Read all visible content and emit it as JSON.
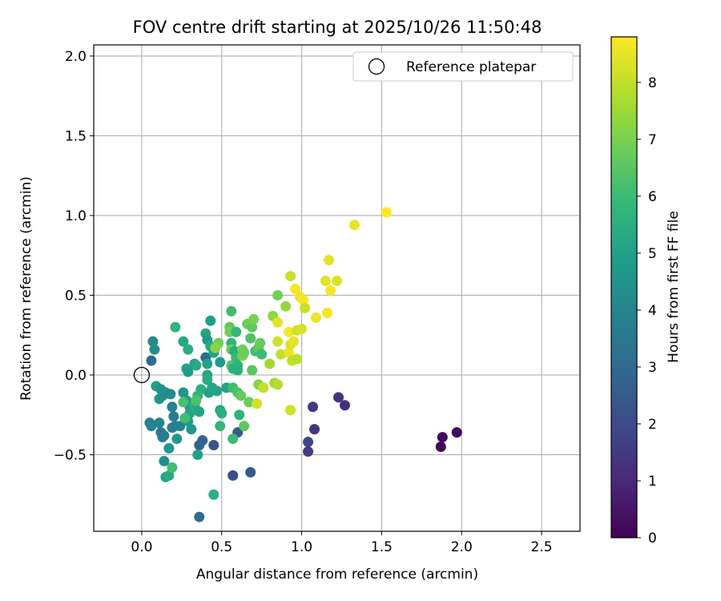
{
  "chart_data": {
    "type": "scatter",
    "title": "FOV centre drift starting at 2025/10/26 11:50:48",
    "xlabel": "Angular distance from reference (arcmin)",
    "ylabel": "Rotation from reference (arcmin)",
    "xlim": [
      -0.3,
      2.74
    ],
    "ylim": [
      -0.98,
      2.07
    ],
    "xticks": [
      0.0,
      0.5,
      1.0,
      1.5,
      2.0,
      2.5
    ],
    "xtick_labels": [
      "0.0",
      "0.5",
      "1.0",
      "1.5",
      "2.0",
      "2.5"
    ],
    "yticks": [
      -0.5,
      0.0,
      0.5,
      1.0,
      1.5,
      2.0
    ],
    "ytick_labels": [
      "−0.5",
      "0.0",
      "0.5",
      "1.0",
      "1.5",
      "2.0"
    ],
    "grid": true,
    "legend": {
      "position": "top-right",
      "label": "Reference platepar"
    },
    "reference_point": {
      "x": 0.0,
      "y": 0.0
    },
    "colorbar": {
      "label": "Hours from first FF file",
      "min": 0,
      "max": 8.8,
      "ticks": [
        0,
        1,
        2,
        3,
        4,
        5,
        6,
        7,
        8
      ],
      "tick_labels": [
        "0",
        "1",
        "2",
        "3",
        "4",
        "5",
        "6",
        "7",
        "8"
      ],
      "colormap": [
        "#440154",
        "#482878",
        "#3e4989",
        "#31688e",
        "#26828e",
        "#1f9e89",
        "#35b779",
        "#6ece58",
        "#b5de2b",
        "#fde725"
      ]
    },
    "points": [
      {
        "x": 1.87,
        "y": -0.45,
        "h": 0.1
      },
      {
        "x": 1.88,
        "y": -0.39,
        "h": 0.15
      },
      {
        "x": 1.97,
        "y": -0.36,
        "h": 0.2
      },
      {
        "x": 1.27,
        "y": -0.19,
        "h": 1.2
      },
      {
        "x": 1.23,
        "y": -0.14,
        "h": 1.3
      },
      {
        "x": 1.07,
        "y": -0.2,
        "h": 1.5
      },
      {
        "x": 1.08,
        "y": -0.34,
        "h": 1.3
      },
      {
        "x": 1.04,
        "y": -0.42,
        "h": 1.8
      },
      {
        "x": 1.04,
        "y": -0.48,
        "h": 1.6
      },
      {
        "x": 0.57,
        "y": -0.63,
        "h": 2.1
      },
      {
        "x": 0.68,
        "y": -0.61,
        "h": 2.6
      },
      {
        "x": 0.6,
        "y": -0.36,
        "h": 2.5
      },
      {
        "x": 0.45,
        "y": -0.44,
        "h": 2.4
      },
      {
        "x": 0.36,
        "y": -0.44,
        "h": 2.7
      },
      {
        "x": 0.38,
        "y": -0.41,
        "h": 2.9
      },
      {
        "x": 0.36,
        "y": -0.89,
        "h": 3.2
      },
      {
        "x": 0.06,
        "y": 0.09,
        "h": 3.1
      },
      {
        "x": 0.4,
        "y": 0.11,
        "h": 3.0
      },
      {
        "x": 0.07,
        "y": 0.21,
        "h": 4.2
      },
      {
        "x": 0.08,
        "y": 0.16,
        "h": 4.4
      },
      {
        "x": 0.05,
        "y": -0.3,
        "h": 3.8
      },
      {
        "x": 0.06,
        "y": -0.32,
        "h": 4.0
      },
      {
        "x": 0.11,
        "y": -0.3,
        "h": 3.9
      },
      {
        "x": 0.12,
        "y": -0.36,
        "h": 3.6
      },
      {
        "x": 0.13,
        "y": -0.39,
        "h": 3.9
      },
      {
        "x": 0.14,
        "y": -0.38,
        "h": 3.7
      },
      {
        "x": 0.14,
        "y": -0.54,
        "h": 4.3
      },
      {
        "x": 0.15,
        "y": -0.64,
        "h": 5.1
      },
      {
        "x": 0.17,
        "y": -0.63,
        "h": 5.4
      },
      {
        "x": 0.19,
        "y": -0.58,
        "h": 6.1
      },
      {
        "x": 0.17,
        "y": -0.46,
        "h": 4.6
      },
      {
        "x": 0.19,
        "y": -0.33,
        "h": 3.9
      },
      {
        "x": 0.21,
        "y": -0.32,
        "h": 3.8
      },
      {
        "x": 0.2,
        "y": -0.26,
        "h": 3.7
      },
      {
        "x": 0.22,
        "y": -0.4,
        "h": 4.7
      },
      {
        "x": 0.24,
        "y": -0.32,
        "h": 4.1
      },
      {
        "x": 0.09,
        "y": -0.07,
        "h": 4.9
      },
      {
        "x": 0.11,
        "y": -0.15,
        "h": 4.6
      },
      {
        "x": 0.13,
        "y": -0.13,
        "h": 4.4
      },
      {
        "x": 0.12,
        "y": -0.09,
        "h": 4.5
      },
      {
        "x": 0.15,
        "y": -0.11,
        "h": 4.3
      },
      {
        "x": 0.18,
        "y": -0.12,
        "h": 4.2
      },
      {
        "x": 0.19,
        "y": -0.2,
        "h": 3.9
      },
      {
        "x": 0.21,
        "y": 0.3,
        "h": 5.7
      },
      {
        "x": 0.26,
        "y": 0.21,
        "h": 5.2
      },
      {
        "x": 0.29,
        "y": 0.16,
        "h": 5.4
      },
      {
        "x": 0.28,
        "y": 0.04,
        "h": 5.1
      },
      {
        "x": 0.29,
        "y": 0.02,
        "h": 4.9
      },
      {
        "x": 0.33,
        "y": 0.07,
        "h": 5.0
      },
      {
        "x": 0.34,
        "y": 0.06,
        "h": 5.3
      },
      {
        "x": 0.26,
        "y": -0.11,
        "h": 4.6
      },
      {
        "x": 0.28,
        "y": -0.16,
        "h": 4.8
      },
      {
        "x": 0.3,
        "y": -0.2,
        "h": 4.7
      },
      {
        "x": 0.3,
        "y": -0.24,
        "h": 5.1
      },
      {
        "x": 0.29,
        "y": -0.29,
        "h": 4.9
      },
      {
        "x": 0.31,
        "y": -0.34,
        "h": 4.6
      },
      {
        "x": 0.33,
        "y": -0.19,
        "h": 5.6
      },
      {
        "x": 0.34,
        "y": -0.22,
        "h": 5.4
      },
      {
        "x": 0.35,
        "y": -0.5,
        "h": 5.0
      },
      {
        "x": 0.36,
        "y": -0.23,
        "h": 5.1
      },
      {
        "x": 0.37,
        "y": -0.09,
        "h": 5.5
      },
      {
        "x": 0.35,
        "y": -0.13,
        "h": 5.7
      },
      {
        "x": 0.27,
        "y": -0.27,
        "h": 6.1
      },
      {
        "x": 0.26,
        "y": -0.17,
        "h": 6.2
      },
      {
        "x": 0.34,
        "y": -0.16,
        "h": 6.3
      },
      {
        "x": 0.4,
        "y": 0.26,
        "h": 5.1
      },
      {
        "x": 0.41,
        "y": 0.22,
        "h": 4.8
      },
      {
        "x": 0.43,
        "y": 0.34,
        "h": 4.9
      },
      {
        "x": 0.43,
        "y": 0.18,
        "h": 5.3
      },
      {
        "x": 0.45,
        "y": 0.14,
        "h": 5.1
      },
      {
        "x": 0.41,
        "y": 0.07,
        "h": 5.0
      },
      {
        "x": 0.41,
        "y": 0.0,
        "h": 5.2
      },
      {
        "x": 0.41,
        "y": -0.03,
        "h": 5.4
      },
      {
        "x": 0.42,
        "y": -0.11,
        "h": 5.0
      },
      {
        "x": 0.44,
        "y": -0.08,
        "h": 5.2
      },
      {
        "x": 0.45,
        "y": -0.75,
        "h": 5.5
      },
      {
        "x": 0.47,
        "y": -0.1,
        "h": 5.1
      },
      {
        "x": 0.49,
        "y": 0.08,
        "h": 4.8
      },
      {
        "x": 0.49,
        "y": -0.22,
        "h": 5.3
      },
      {
        "x": 0.49,
        "y": -0.32,
        "h": 5.8
      },
      {
        "x": 0.5,
        "y": -0.24,
        "h": 5.5
      },
      {
        "x": 0.48,
        "y": 0.2,
        "h": 6.9
      },
      {
        "x": 0.46,
        "y": 0.17,
        "h": 7.2
      },
      {
        "x": 0.53,
        "y": -0.08,
        "h": 5.1
      },
      {
        "x": 0.55,
        "y": 0.3,
        "h": 6.6
      },
      {
        "x": 0.55,
        "y": 0.27,
        "h": 6.9
      },
      {
        "x": 0.56,
        "y": 0.4,
        "h": 6.1
      },
      {
        "x": 0.56,
        "y": 0.2,
        "h": 5.7
      },
      {
        "x": 0.56,
        "y": 0.16,
        "h": 6.8
      },
      {
        "x": 0.56,
        "y": 0.06,
        "h": 6.5
      },
      {
        "x": 0.57,
        "y": 0.04,
        "h": 5.6
      },
      {
        "x": 0.57,
        "y": -0.08,
        "h": 6.1
      },
      {
        "x": 0.57,
        "y": -0.4,
        "h": 6.0
      },
      {
        "x": 0.58,
        "y": 0.15,
        "h": 5.4
      },
      {
        "x": 0.59,
        "y": 0.27,
        "h": 5.8
      },
      {
        "x": 0.59,
        "y": 0.11,
        "h": 5.9
      },
      {
        "x": 0.6,
        "y": 0.06,
        "h": 5.6
      },
      {
        "x": 0.6,
        "y": 0.03,
        "h": 5.5
      },
      {
        "x": 0.6,
        "y": -0.11,
        "h": 6.3
      },
      {
        "x": 0.61,
        "y": -0.25,
        "h": 5.7
      },
      {
        "x": 0.62,
        "y": -0.13,
        "h": 6.7
      },
      {
        "x": 0.63,
        "y": 0.16,
        "h": 6.9
      },
      {
        "x": 0.63,
        "y": 0.12,
        "h": 7.0
      },
      {
        "x": 0.64,
        "y": 0.14,
        "h": 6.8
      },
      {
        "x": 0.64,
        "y": -0.32,
        "h": 6.6
      },
      {
        "x": 0.66,
        "y": 0.32,
        "h": 6.8
      },
      {
        "x": 0.67,
        "y": -0.17,
        "h": 6.8
      },
      {
        "x": 0.68,
        "y": 0.23,
        "h": 6.3
      },
      {
        "x": 0.69,
        "y": 0.3,
        "h": 6.6
      },
      {
        "x": 0.7,
        "y": 0.35,
        "h": 7.0
      },
      {
        "x": 0.69,
        "y": 0.03,
        "h": 6.5
      },
      {
        "x": 0.71,
        "y": 0.15,
        "h": 6.1
      },
      {
        "x": 0.73,
        "y": 0.17,
        "h": 6.6
      },
      {
        "x": 0.73,
        "y": -0.06,
        "h": 7.2
      },
      {
        "x": 0.74,
        "y": 0.2,
        "h": 6.7
      },
      {
        "x": 0.75,
        "y": 0.13,
        "h": 6.0
      },
      {
        "x": 0.76,
        "y": -0.08,
        "h": 8.0
      },
      {
        "x": 0.72,
        "y": -0.18,
        "h": 8.2
      },
      {
        "x": 0.8,
        "y": 0.07,
        "h": 7.6
      },
      {
        "x": 0.82,
        "y": 0.37,
        "h": 7.3
      },
      {
        "x": 0.83,
        "y": -0.05,
        "h": 7.6
      },
      {
        "x": 0.85,
        "y": -0.06,
        "h": 7.8
      },
      {
        "x": 0.85,
        "y": 0.33,
        "h": 8.4
      },
      {
        "x": 0.85,
        "y": 0.21,
        "h": 8.2
      },
      {
        "x": 0.85,
        "y": 0.5,
        "h": 6.9
      },
      {
        "x": 0.87,
        "y": 0.13,
        "h": 8.0
      },
      {
        "x": 0.9,
        "y": 0.43,
        "h": 7.4
      },
      {
        "x": 0.92,
        "y": 0.14,
        "h": 8.6
      },
      {
        "x": 0.92,
        "y": 0.27,
        "h": 8.7
      },
      {
        "x": 0.93,
        "y": 0.62,
        "h": 8.1
      },
      {
        "x": 0.93,
        "y": 0.19,
        "h": 8.3
      },
      {
        "x": 0.94,
        "y": 0.09,
        "h": 8.0
      },
      {
        "x": 0.93,
        "y": -0.22,
        "h": 8.2
      },
      {
        "x": 0.95,
        "y": 0.21,
        "h": 8.5
      },
      {
        "x": 0.96,
        "y": 0.54,
        "h": 8.7
      },
      {
        "x": 0.97,
        "y": 0.28,
        "h": 8.2
      },
      {
        "x": 0.97,
        "y": 0.1,
        "h": 7.9
      },
      {
        "x": 0.99,
        "y": 0.49,
        "h": 8.6
      },
      {
        "x": 1.0,
        "y": 0.29,
        "h": 8.3
      },
      {
        "x": 1.01,
        "y": 0.47,
        "h": 8.7
      },
      {
        "x": 1.02,
        "y": 0.42,
        "h": 8.1
      },
      {
        "x": 1.09,
        "y": 0.36,
        "h": 8.6
      },
      {
        "x": 1.15,
        "y": 0.59,
        "h": 8.4
      },
      {
        "x": 1.16,
        "y": 0.39,
        "h": 8.7
      },
      {
        "x": 1.17,
        "y": 0.72,
        "h": 8.4
      },
      {
        "x": 1.18,
        "y": 0.53,
        "h": 8.7
      },
      {
        "x": 1.22,
        "y": 0.59,
        "h": 8.3
      },
      {
        "x": 1.33,
        "y": 0.94,
        "h": 8.5
      },
      {
        "x": 1.53,
        "y": 1.02,
        "h": 8.8
      }
    ]
  }
}
